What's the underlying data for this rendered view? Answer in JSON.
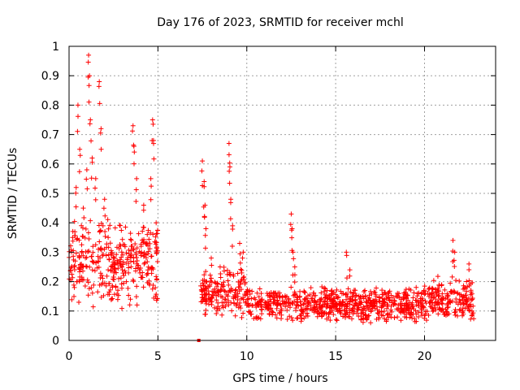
{
  "chart_data": {
    "type": "scatter",
    "title": "Day 176 of 2023, SRMTID for receiver mchl",
    "xlabel": "GPS time / hours",
    "ylabel": "SRMTID / TECUs",
    "xlim": [
      0,
      24
    ],
    "ylim": [
      0,
      1
    ],
    "x_ticks": [
      0,
      5,
      10,
      15,
      20
    ],
    "x_tick_labels": [
      "0",
      "5",
      "10",
      "15",
      "20"
    ],
    "y_ticks": [
      0,
      0.1,
      0.2,
      0.3,
      0.4,
      0.5,
      0.6,
      0.7,
      0.8,
      0.9,
      1
    ],
    "y_tick_labels": [
      "0",
      "0.1",
      "0.2",
      "0.3",
      "0.4",
      "0.5",
      "0.6",
      "0.7",
      "0.8",
      "0.9",
      "1"
    ],
    "grid": true,
    "marker": "+",
    "marker_color": "#ff0000",
    "series": [
      {
        "name": "SRMTID",
        "segments": [
          {
            "x_start": 0.0,
            "x_end": 5.0,
            "base": 0.26,
            "spread": 0.1
          },
          {
            "x_start": 7.4,
            "x_end": 10.0,
            "base": 0.16,
            "spread": 0.06
          },
          {
            "x_start": 10.0,
            "x_end": 20.0,
            "base": 0.12,
            "spread": 0.04
          },
          {
            "x_start": 20.0,
            "x_end": 22.8,
            "base": 0.14,
            "spread": 0.05
          }
        ],
        "peaks": [
          {
            "x": 0.2,
            "y": 0.35
          },
          {
            "x": 0.4,
            "y": 0.52
          },
          {
            "x": 0.5,
            "y": 0.8
          },
          {
            "x": 0.6,
            "y": 0.65
          },
          {
            "x": 0.8,
            "y": 0.45
          },
          {
            "x": 1.0,
            "y": 0.58
          },
          {
            "x": 1.1,
            "y": 0.97
          },
          {
            "x": 1.15,
            "y": 0.9
          },
          {
            "x": 1.2,
            "y": 0.75
          },
          {
            "x": 1.3,
            "y": 0.62
          },
          {
            "x": 1.5,
            "y": 0.55
          },
          {
            "x": 1.7,
            "y": 0.88
          },
          {
            "x": 1.8,
            "y": 0.72
          },
          {
            "x": 2.0,
            "y": 0.48
          },
          {
            "x": 2.2,
            "y": 0.35
          },
          {
            "x": 2.5,
            "y": 0.28
          },
          {
            "x": 3.0,
            "y": 0.24
          },
          {
            "x": 3.5,
            "y": 0.34
          },
          {
            "x": 3.6,
            "y": 0.73
          },
          {
            "x": 3.65,
            "y": 0.66
          },
          {
            "x": 3.8,
            "y": 0.55
          },
          {
            "x": 4.2,
            "y": 0.46
          },
          {
            "x": 4.4,
            "y": 0.36
          },
          {
            "x": 4.6,
            "y": 0.55
          },
          {
            "x": 4.7,
            "y": 0.75
          },
          {
            "x": 4.75,
            "y": 0.68
          },
          {
            "x": 4.9,
            "y": 0.4
          },
          {
            "x": 7.5,
            "y": 0.61
          },
          {
            "x": 7.6,
            "y": 0.54
          },
          {
            "x": 7.65,
            "y": 0.46
          },
          {
            "x": 7.7,
            "y": 0.38
          },
          {
            "x": 8.0,
            "y": 0.28
          },
          {
            "x": 8.5,
            "y": 0.25
          },
          {
            "x": 9.0,
            "y": 0.67
          },
          {
            "x": 9.05,
            "y": 0.59
          },
          {
            "x": 9.1,
            "y": 0.48
          },
          {
            "x": 9.2,
            "y": 0.39
          },
          {
            "x": 9.6,
            "y": 0.33
          },
          {
            "x": 9.8,
            "y": 0.3
          },
          {
            "x": 12.5,
            "y": 0.43
          },
          {
            "x": 12.55,
            "y": 0.38
          },
          {
            "x": 12.6,
            "y": 0.3
          },
          {
            "x": 12.7,
            "y": 0.25
          },
          {
            "x": 15.6,
            "y": 0.3
          },
          {
            "x": 15.8,
            "y": 0.24
          },
          {
            "x": 21.6,
            "y": 0.34
          },
          {
            "x": 21.7,
            "y": 0.3
          },
          {
            "x": 22.5,
            "y": 0.26
          }
        ],
        "marked_points": [
          {
            "x": 7.3,
            "y": 0.0
          }
        ]
      }
    ]
  }
}
